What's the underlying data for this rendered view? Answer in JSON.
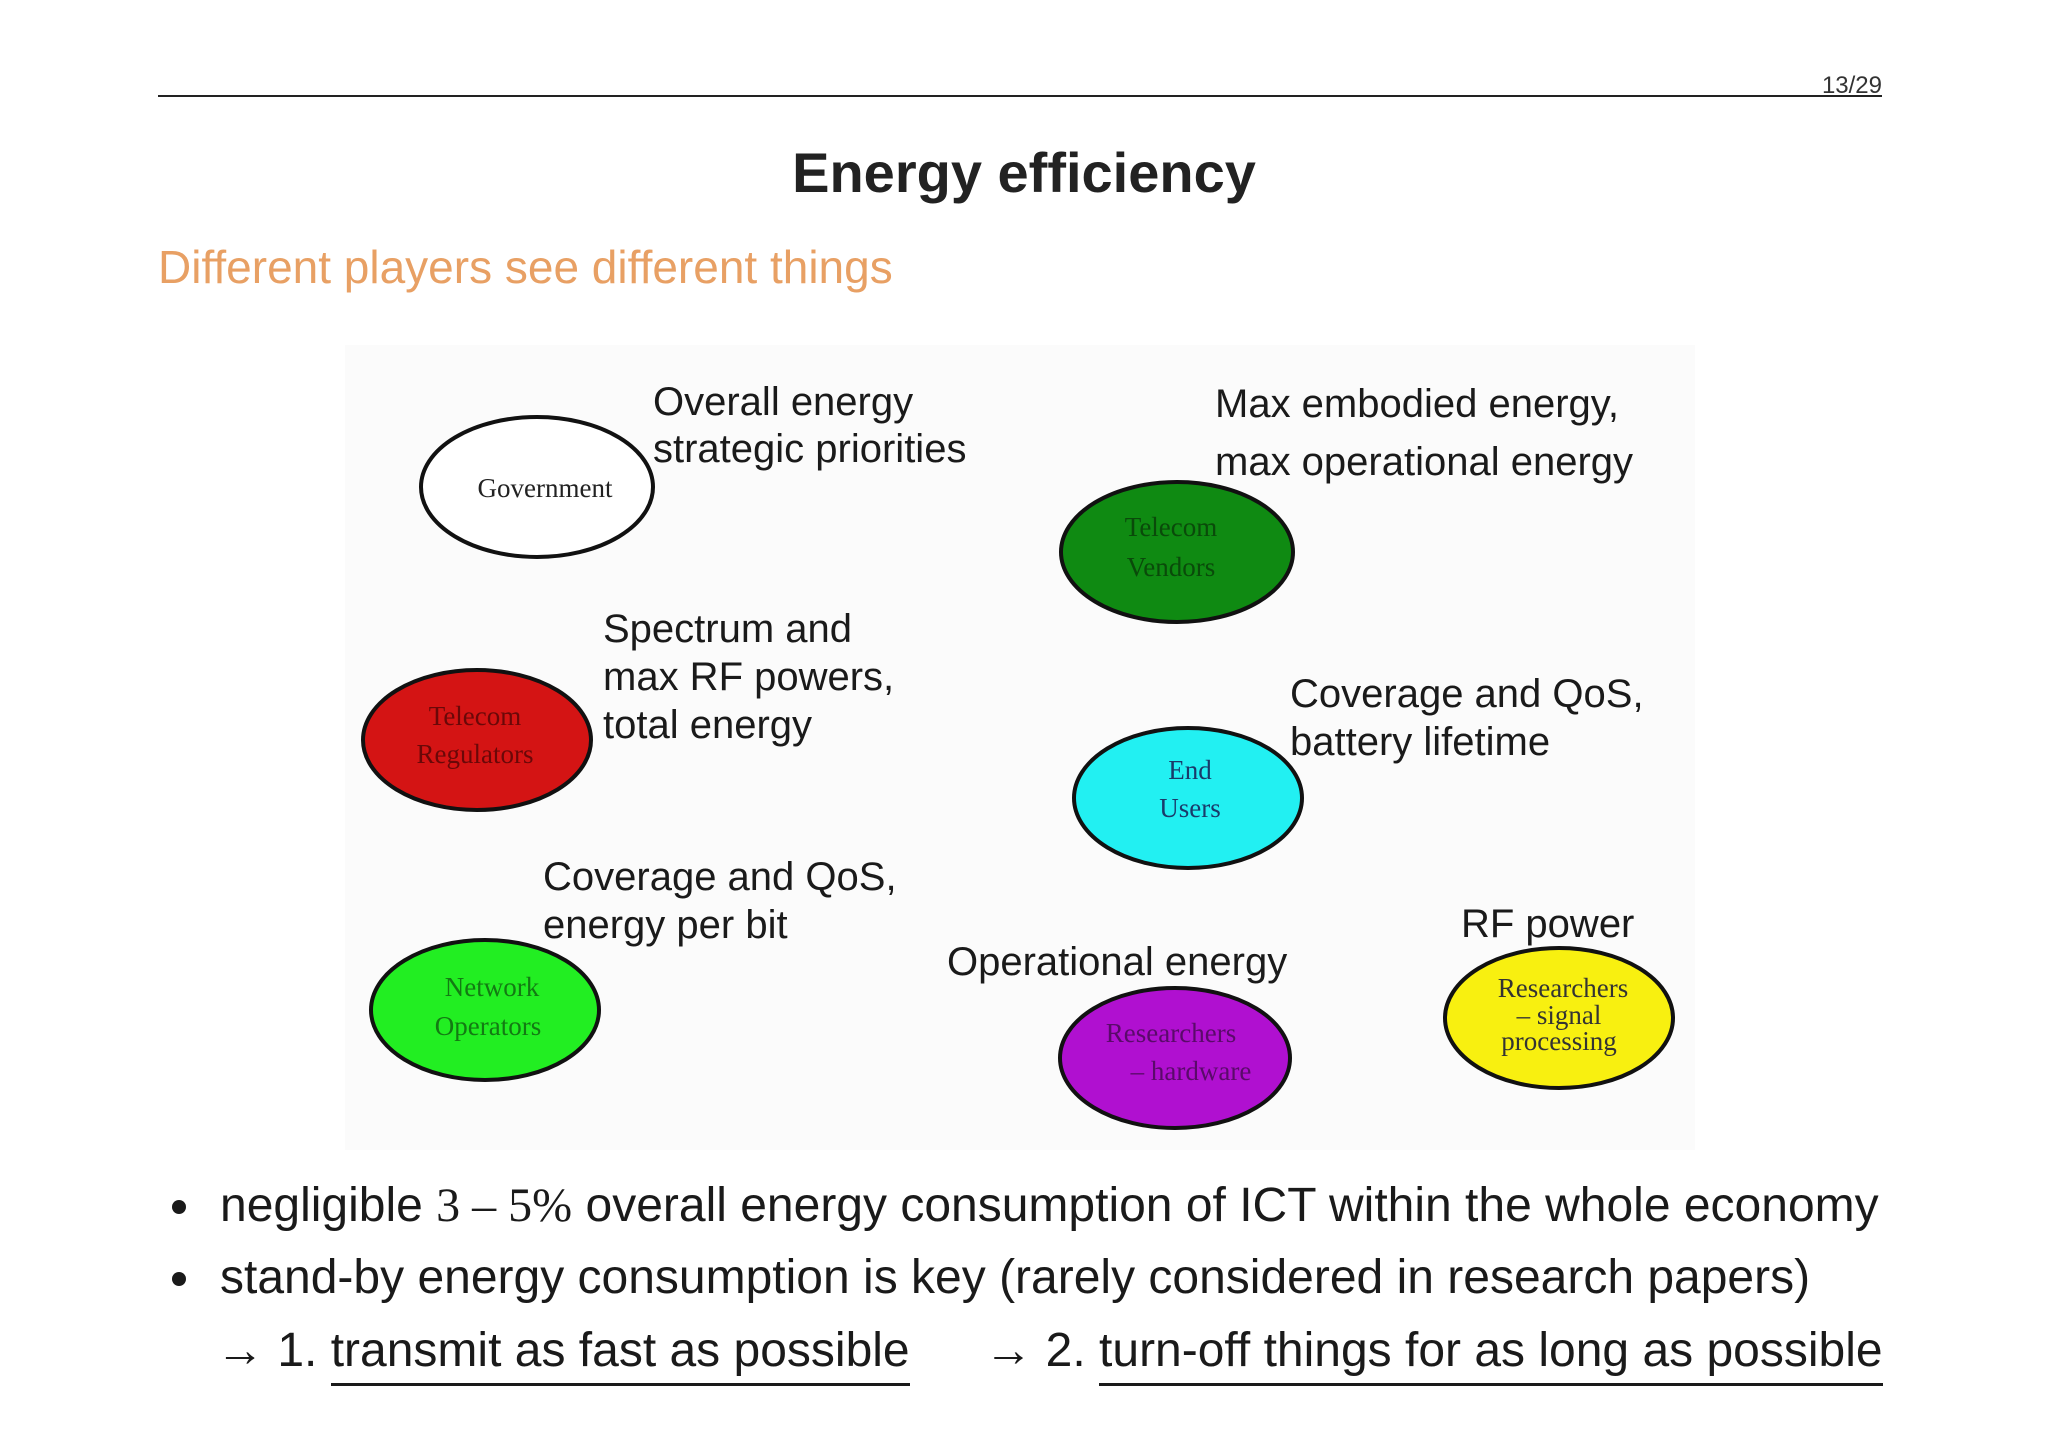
{
  "header": {
    "page_number": "13/29"
  },
  "slide": {
    "title": "Energy efficiency",
    "subtitle": "Different players see different things"
  },
  "figure": {
    "players": [
      {
        "id": "government",
        "lines": [
          "Government"
        ],
        "color": "#ffffff",
        "text_color": "#222222"
      },
      {
        "id": "telecom-vendors",
        "lines": [
          "Telecom",
          "Vendors"
        ],
        "color": "#0f8a12",
        "text_color": "#0a4a0a"
      },
      {
        "id": "telecom-regulators",
        "lines": [
          "Telecom",
          "Regulators"
        ],
        "color": "#d41414",
        "text_color": "#6a0808"
      },
      {
        "id": "end-users",
        "lines": [
          "End",
          "Users"
        ],
        "color": "#22f0f2",
        "text_color": "#1a3a6a"
      },
      {
        "id": "network-operators",
        "lines": [
          "Network",
          "Operators"
        ],
        "color": "#22ee22",
        "text_color": "#137a13"
      },
      {
        "id": "researchers-hardware",
        "lines": [
          "Researchers",
          "– hardware"
        ],
        "color": "#b010d0",
        "text_color": "#5a0a6a"
      },
      {
        "id": "researchers-signal",
        "lines": [
          "Researchers",
          "– signal",
          "processing"
        ],
        "color": "#f8f010",
        "text_color": "#333333"
      }
    ],
    "labels": [
      {
        "id": "government-concern",
        "lines": [
          "Overall energy",
          "strategic priorities"
        ]
      },
      {
        "id": "vendors-concern",
        "lines": [
          "Max embodied energy,",
          "max operational energy"
        ]
      },
      {
        "id": "regulators-concern",
        "lines": [
          "Spectrum and",
          "max RF powers,",
          "total energy"
        ]
      },
      {
        "id": "users-concern",
        "lines": [
          "Coverage and QoS,",
          "battery lifetime"
        ]
      },
      {
        "id": "operators-concern",
        "lines": [
          "Coverage and QoS,",
          "energy per bit"
        ]
      },
      {
        "id": "hardware-concern",
        "lines": [
          "Operational energy"
        ]
      },
      {
        "id": "signal-concern",
        "lines": [
          "RF power"
        ]
      }
    ]
  },
  "bullets": [
    {
      "pre": "negligible",
      "math": "3 – 5%",
      "post": "overall energy consumption of ICT within the whole economy"
    },
    {
      "text": "stand-by energy consumption is key (rarely considered in research papers)"
    }
  ],
  "steps": {
    "arrow": "→",
    "first_num": "1.",
    "first": "transmit as fast as possible",
    "second_num": "2.",
    "second": "turn-off things for as long as possible"
  }
}
